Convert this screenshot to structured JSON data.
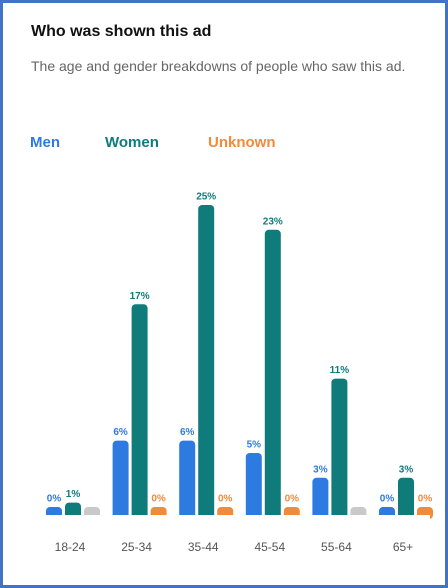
{
  "chart_data": {
    "type": "bar",
    "title": "Who was shown this ad",
    "subtitle": "The age and gender breakdowns of people who saw this ad.",
    "categories": [
      "18-24",
      "25-34",
      "35-44",
      "45-54",
      "55-64",
      "65+"
    ],
    "series": [
      {
        "name": "Men",
        "color": "#2d7be0",
        "values": [
          0,
          6,
          6,
          5,
          3,
          0
        ],
        "value_labels": [
          "0%",
          "6%",
          "6%",
          "5%",
          "3%",
          "0%"
        ]
      },
      {
        "name": "Women",
        "color": "#0f7b7b",
        "values": [
          1,
          17,
          25,
          23,
          11,
          3
        ],
        "value_labels": [
          "1%",
          "17%",
          "25%",
          "23%",
          "11%",
          "3%"
        ]
      },
      {
        "name": "Unknown",
        "color": "#f08a3c",
        "values": [
          0,
          0,
          0,
          0,
          0,
          0
        ],
        "value_labels": [
          null,
          "0%",
          "0%",
          "0%",
          null,
          "0%"
        ],
        "point_colors": [
          "#c9c9c9",
          "#f08a3c",
          "#f08a3c",
          "#f08a3c",
          "#c9c9c9",
          "#f08a3c"
        ]
      }
    ],
    "ylim": [
      0,
      25
    ]
  }
}
